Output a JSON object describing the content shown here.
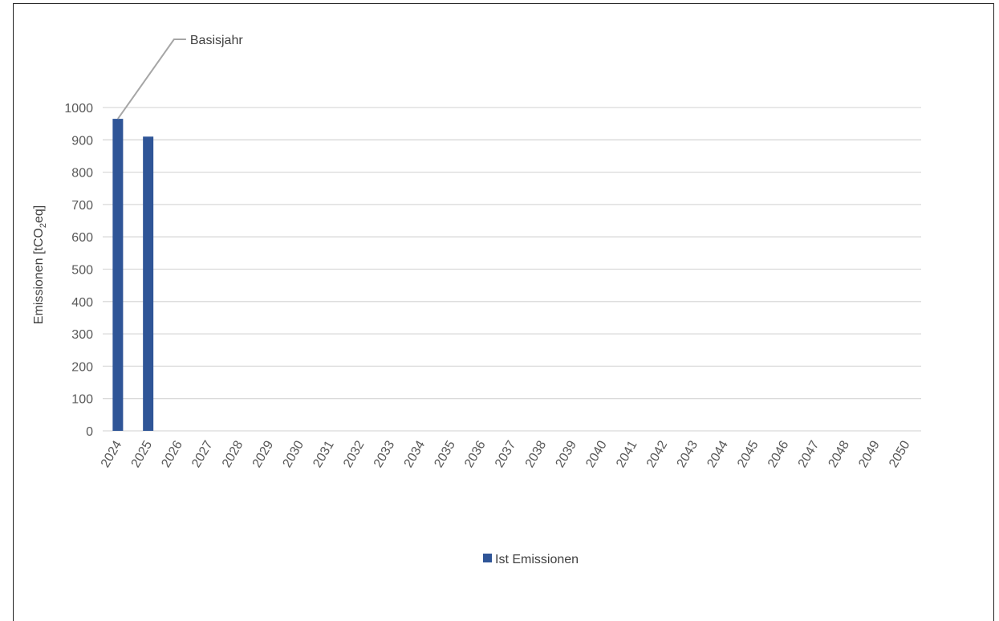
{
  "chart_data": {
    "type": "bar",
    "title": "",
    "xlabel": "",
    "ylabel_main": "Emissionen [tCO",
    "ylabel_sub": "2",
    "ylabel_tail": "eq]",
    "categories": [
      "2024",
      "2025",
      "2026",
      "2027",
      "2028",
      "2029",
      "2030",
      "2031",
      "2032",
      "2033",
      "2034",
      "2035",
      "2036",
      "2037",
      "2038",
      "2039",
      "2040",
      "2041",
      "2042",
      "2043",
      "2044",
      "2045",
      "2046",
      "2047",
      "2048",
      "2049",
      "2050"
    ],
    "series": [
      {
        "name": "Ist Emissionen",
        "color": "#2F5597",
        "values": [
          965,
          910,
          null,
          null,
          null,
          null,
          null,
          null,
          null,
          null,
          null,
          null,
          null,
          null,
          null,
          null,
          null,
          null,
          null,
          null,
          null,
          null,
          null,
          null,
          null,
          null,
          null
        ]
      }
    ],
    "ylim": [
      0,
      1000
    ],
    "yticks": [
      0,
      100,
      200,
      300,
      400,
      500,
      600,
      700,
      800,
      900,
      1000
    ],
    "grid": true,
    "legend_position": "bottom",
    "annotation": {
      "text": "Basisjahr",
      "target_category": "2024"
    }
  }
}
